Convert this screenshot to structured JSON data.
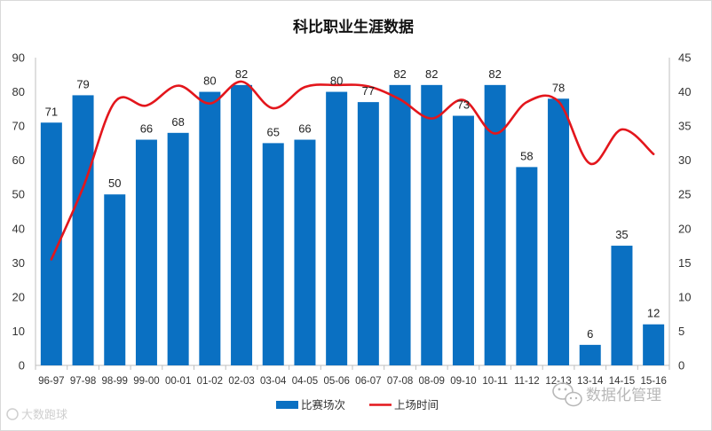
{
  "chart_data": {
    "type": "bar",
    "title": "科比职业生涯数据",
    "categories": [
      "96-97",
      "97-98",
      "98-99",
      "99-00",
      "00-01",
      "01-02",
      "02-03",
      "03-04",
      "04-05",
      "05-06",
      "06-07",
      "07-08",
      "08-09",
      "09-10",
      "10-11",
      "11-12",
      "12-13",
      "13-14",
      "14-15",
      "15-16"
    ],
    "series": [
      {
        "name": "比赛场次",
        "type": "bar",
        "axis": "left",
        "color": "#0a70c2",
        "values": [
          71,
          79,
          50,
          66,
          68,
          80,
          82,
          65,
          66,
          80,
          77,
          82,
          82,
          73,
          82,
          58,
          78,
          6,
          35,
          12
        ]
      },
      {
        "name": "上场时间",
        "type": "line",
        "axis": "right",
        "color": "#e3161c",
        "values": [
          15.5,
          26,
          38.5,
          38,
          40.9,
          38.3,
          41.5,
          37.6,
          40.7,
          41,
          40.8,
          38.9,
          36.1,
          38.8,
          33.9,
          38.5,
          38.6,
          29.5,
          34.5,
          30.9
        ]
      }
    ],
    "left_axis": {
      "min": 0,
      "max": 90,
      "ticks": [
        0,
        10,
        20,
        30,
        40,
        50,
        60,
        70,
        80,
        90
      ]
    },
    "right_axis": {
      "min": 0,
      "max": 45,
      "ticks": [
        0,
        5,
        10,
        15,
        20,
        25,
        30,
        35,
        40,
        45
      ]
    },
    "legend_position": "bottom",
    "grid": false
  },
  "watermarks": {
    "bottom_left": "大数跑球",
    "bottom_right": "数据化管理"
  }
}
